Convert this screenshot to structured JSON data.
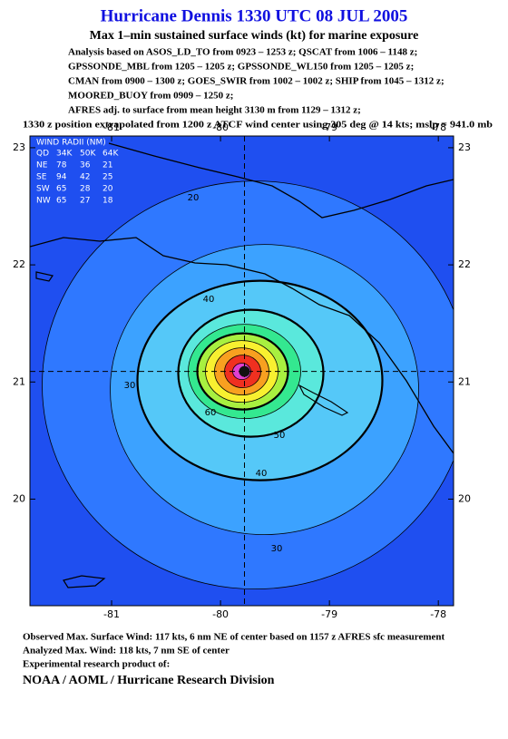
{
  "header": {
    "title": "Hurricane Dennis 1330 UTC 08 JUL 2005",
    "subtitle": "Max 1–min sustained surface winds (kt) for marine exposure",
    "lines": [
      "Analysis based on  ASOS_LD_TO from 0923 – 1253 z;  QSCAT from 1006 – 1148 z;",
      "GPSSONDE_MBL from 1205 – 1205 z;  GPSSONDE_WL150 from 1205 – 1205 z;",
      "CMAN from 0900 – 1300 z;  GOES_SWIR from 1002 – 1002 z;  SHIP from 1045 – 1312 z;",
      "MOORED_BUOY from 0909 – 1250 z;",
      "AFRES adj. to surface from mean height 3130 m from 1129 – 1312 z;",
      "1330 z position extrapolated from 1200 z ATCF wind center using 305 deg @ 14 kts; mslp = 941.0 mb"
    ]
  },
  "map": {
    "xlim": [
      -81.75,
      -77.86
    ],
    "ylim": [
      19.09,
      23.1
    ],
    "xticks": [
      -81,
      -80,
      -79,
      -78
    ],
    "yticks": [
      23,
      22,
      21,
      20
    ],
    "center": {
      "lon": -79.78,
      "lat": 21.09
    },
    "background_color": "#1f4ff0",
    "contours": {
      "levels": [
        20,
        30,
        40,
        50,
        60,
        70,
        80,
        90,
        100,
        110
      ],
      "colors": [
        "#2f78ff",
        "#3ca2ff",
        "#55c8f8",
        "#5ae8dc",
        "#34e890",
        "#a8f040",
        "#f8f030",
        "#f8a020",
        "#f03020",
        "#e040d0"
      ]
    },
    "wind_radii": {
      "title": "WIND RADII (NM)",
      "columns": [
        "QD",
        "34K",
        "50K",
        "64K"
      ],
      "rows": [
        [
          "NE",
          78,
          36,
          21
        ],
        [
          "SE",
          94,
          42,
          25
        ],
        [
          "SW",
          65,
          28,
          20
        ],
        [
          "NW",
          65,
          27,
          18
        ]
      ]
    }
  },
  "footer": {
    "lines": [
      "Observed Max. Surface Wind: 117 kts, 6 nm NE of center based on 1157 z AFRES sfc measurement",
      "Analyzed Max. Wind: 118 kts, 7 nm SE of center",
      "Experimental research product of:"
    ],
    "credit": "NOAA / AOML / Hurricane Research Division"
  }
}
